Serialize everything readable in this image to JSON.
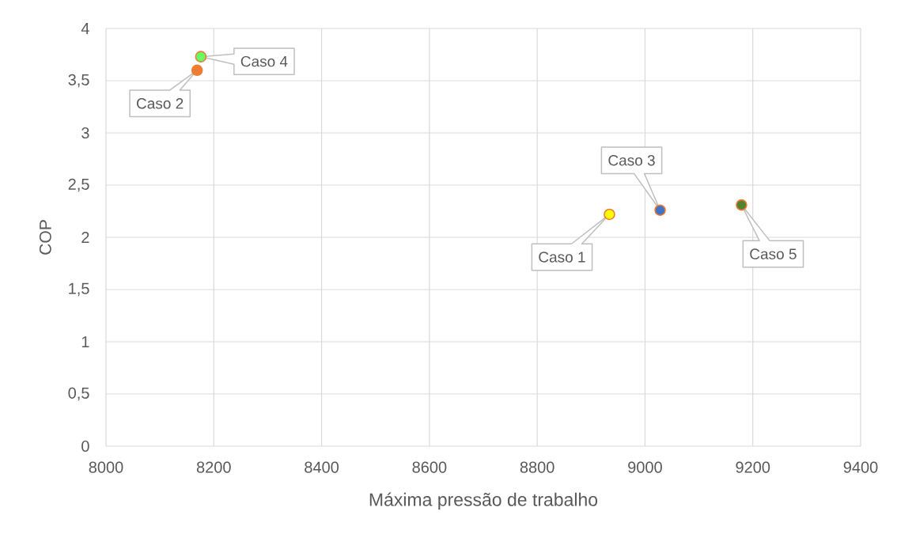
{
  "chart_data": {
    "type": "scatter",
    "xlabel": "Máxima pressão de trabalho",
    "ylabel": "COP",
    "x": [
      8934,
      8169,
      9028,
      8176,
      9179
    ],
    "values": [
      2.22,
      3.6,
      2.26,
      3.73,
      2.31
    ],
    "color": "#ed7d31",
    "colors": [
      "#ffff00",
      "#ed7d31",
      "#4472c4",
      "#66ff66",
      "#548235"
    ],
    "marker": "circle",
    "grid": true,
    "xlim": [
      8000,
      9400
    ],
    "xticks": [
      8000,
      8200,
      8400,
      8600,
      8800,
      9000,
      9200,
      9400
    ],
    "ylim": [
      0,
      4
    ],
    "yticks": [
      0,
      {
        "value": 0.5,
        "label": "0,5"
      },
      1,
      {
        "value": 1.5,
        "label": "1,5"
      },
      2,
      {
        "value": 2.5,
        "label": "2,5"
      },
      3,
      {
        "value": 3.5,
        "label": "3,5"
      },
      4
    ],
    "annotations": [
      {
        "text": "Caso 1",
        "x": 8934,
        "y": 2.22
      },
      {
        "text": "Caso 2",
        "x": 8169,
        "y": 3.6
      },
      {
        "text": "Caso 3",
        "x": 9028,
        "y": 2.26
      },
      {
        "text": "Caso 4",
        "x": 8176,
        "y": 3.73
      },
      {
        "text": "Caso 5",
        "x": 9179,
        "y": 2.31
      }
    ]
  }
}
